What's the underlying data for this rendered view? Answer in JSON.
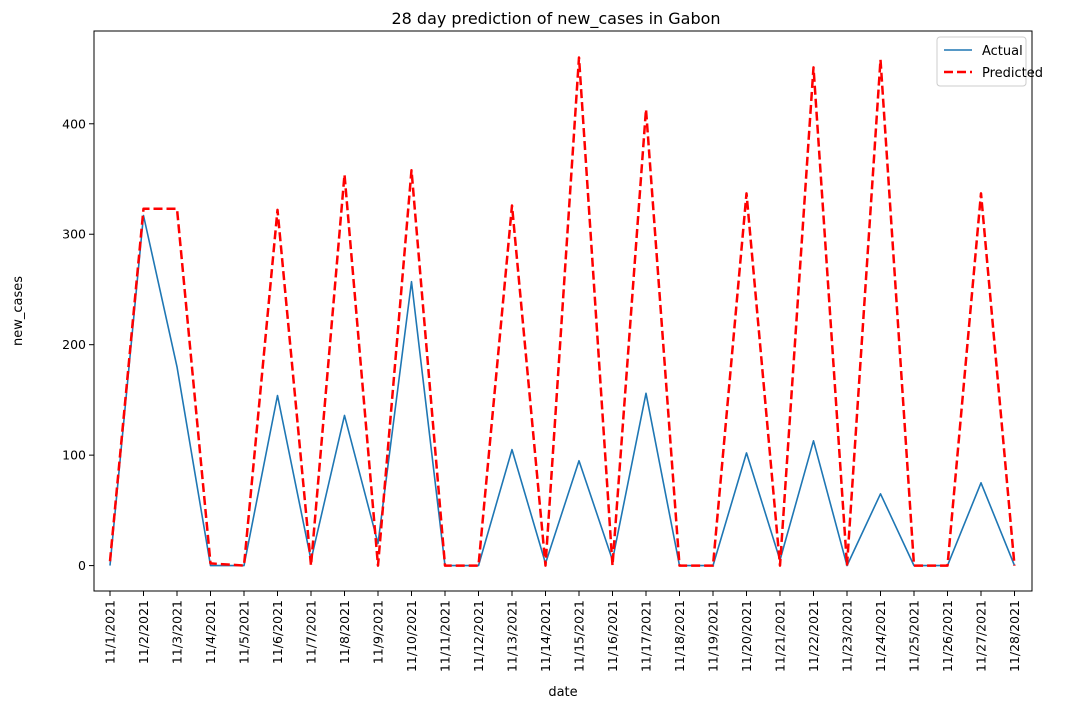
{
  "chart_data": {
    "type": "line",
    "title": "28 day prediction of new_cases in Gabon",
    "xlabel": "date",
    "ylabel": "new_cases",
    "categories": [
      "11/1/2021",
      "11/2/2021",
      "11/3/2021",
      "11/4/2021",
      "11/5/2021",
      "11/6/2021",
      "11/7/2021",
      "11/8/2021",
      "11/9/2021",
      "11/10/2021",
      "11/11/2021",
      "11/12/2021",
      "11/13/2021",
      "11/14/2021",
      "11/15/2021",
      "11/16/2021",
      "11/17/2021",
      "11/18/2021",
      "11/19/2021",
      "11/20/2021",
      "11/21/2021",
      "11/22/2021",
      "11/23/2021",
      "11/24/2021",
      "11/25/2021",
      "11/26/2021",
      "11/27/2021",
      "11/28/2021"
    ],
    "yticks": [
      0,
      100,
      200,
      300,
      400
    ],
    "ylim": [
      -23,
      484
    ],
    "grid": false,
    "legend_position": "top-right",
    "series": [
      {
        "name": "Actual",
        "color": "#1f77b4",
        "style": "solid",
        "values": [
          0,
          317,
          180,
          0,
          0,
          154,
          5,
          136,
          20,
          257,
          0,
          0,
          105,
          2,
          95,
          5,
          156,
          0,
          0,
          102,
          5,
          113,
          0,
          65,
          0,
          0,
          75,
          0
        ]
      },
      {
        "name": "Predicted",
        "color": "#ff0000",
        "style": "dashed",
        "values": [
          4,
          323,
          323,
          2,
          0,
          322,
          0,
          354,
          0,
          358,
          0,
          0,
          326,
          0,
          460,
          0,
          413,
          0,
          0,
          337,
          0,
          451,
          0,
          458,
          0,
          0,
          337,
          0
        ]
      }
    ]
  }
}
